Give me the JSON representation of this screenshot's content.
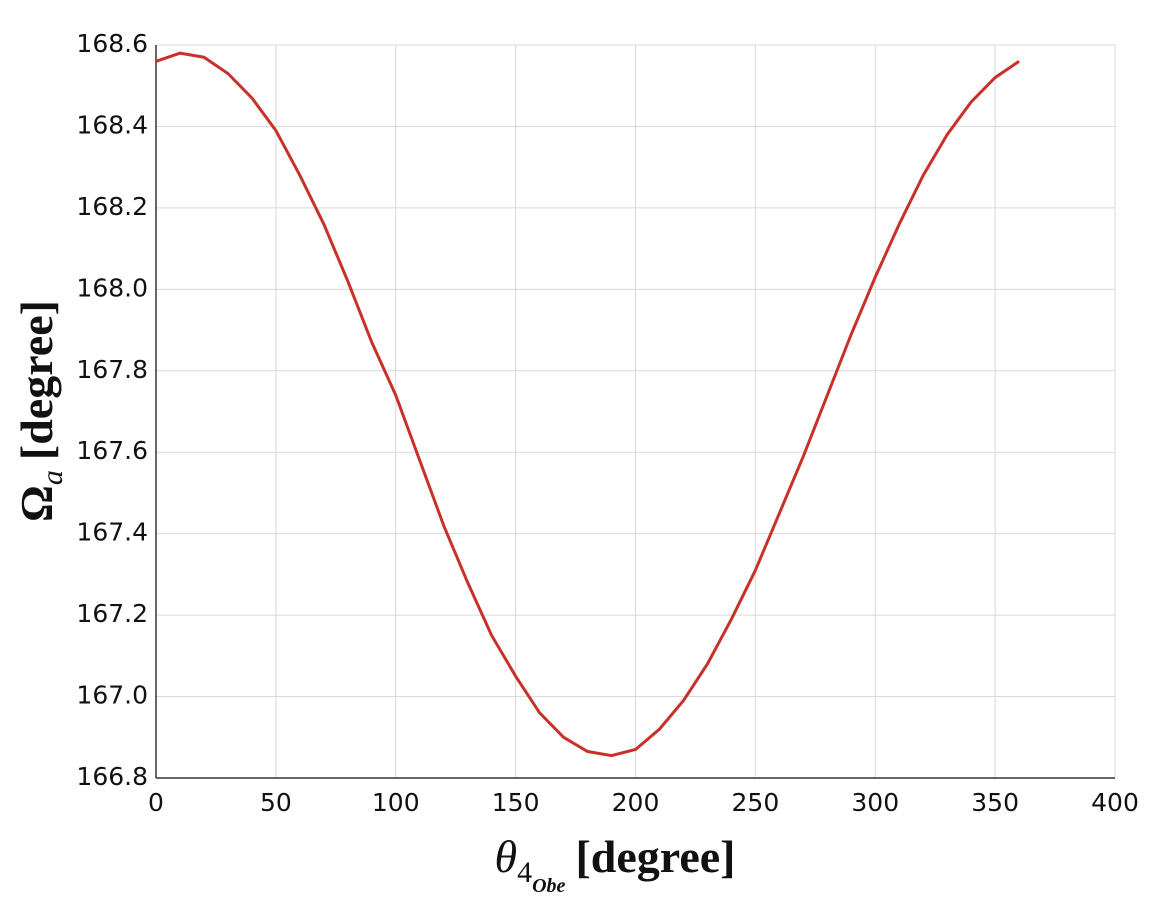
{
  "chart_data": {
    "type": "line",
    "x_label": {
      "symbol": "θ",
      "sub": "4",
      "subsub": "Obe",
      "unit": "[degree]"
    },
    "y_label": {
      "symbol": "Ω",
      "sub": "a",
      "unit": "[degree]"
    },
    "x": [
      0,
      10,
      20,
      30,
      40,
      50,
      60,
      70,
      80,
      90,
      100,
      110,
      120,
      130,
      140,
      150,
      160,
      170,
      180,
      190,
      200,
      210,
      220,
      230,
      240,
      250,
      260,
      270,
      280,
      290,
      300,
      310,
      320,
      330,
      340,
      350,
      360
    ],
    "series": [
      {
        "color": "#c8312a",
        "values": [
          168.56,
          168.58,
          168.57,
          168.53,
          168.47,
          168.39,
          168.28,
          168.16,
          168.02,
          167.87,
          167.74,
          167.58,
          167.42,
          167.28,
          167.15,
          167.05,
          166.96,
          166.9,
          166.865,
          166.855,
          166.87,
          166.92,
          166.99,
          167.08,
          167.19,
          167.31,
          167.45,
          167.59,
          167.74,
          167.89,
          168.03,
          168.16,
          168.28,
          168.38,
          168.46,
          168.52,
          168.56
        ]
      }
    ],
    "xlim": [
      0,
      400
    ],
    "xticks": [
      0,
      50,
      100,
      150,
      200,
      250,
      300,
      350,
      400
    ],
    "ylim": [
      166.8,
      168.6
    ],
    "yticks": [
      166.8,
      {
        "value": 167.0,
        "label": "167.0"
      },
      167.2,
      167.4,
      167.6,
      167.8,
      {
        "value": 168.0,
        "label": "168.0"
      },
      168.2,
      168.4,
      168.6
    ],
    "grid": true
  }
}
